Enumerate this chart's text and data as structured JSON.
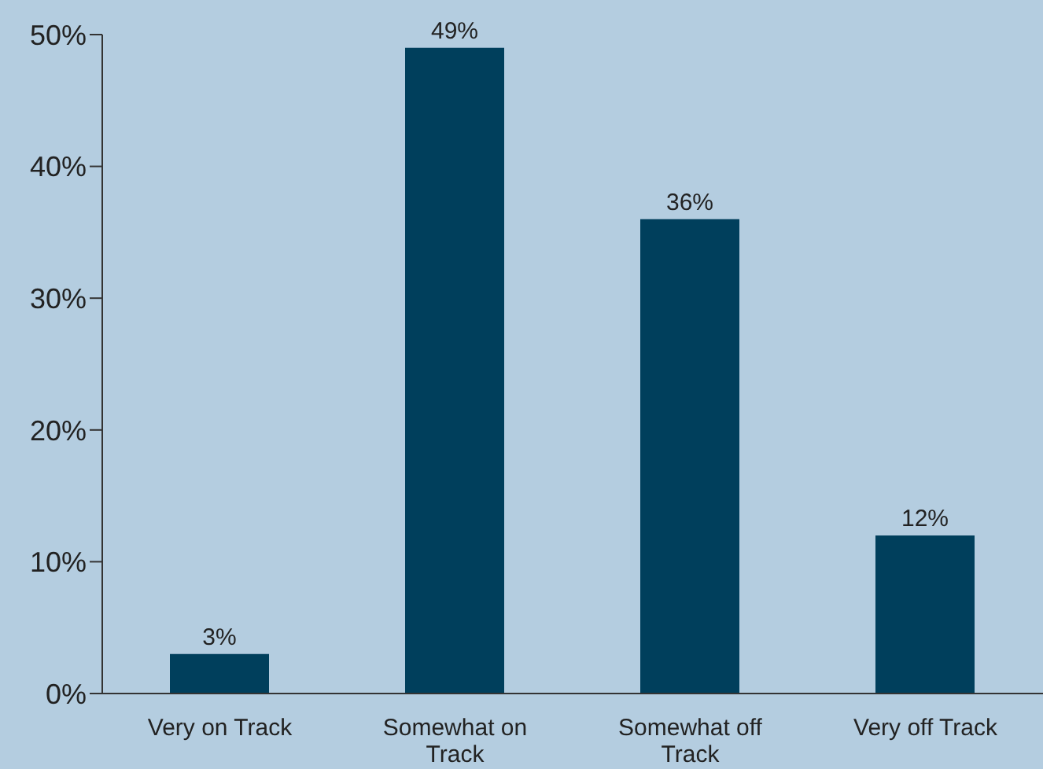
{
  "chart_data": {
    "type": "bar",
    "categories": [
      "Very on Track",
      "Somewhat on Track",
      "Somewhat off Track",
      "Very off Track"
    ],
    "values": [
      3,
      49,
      36,
      12
    ],
    "color": "#003f5c",
    "value_labels": [
      "3%",
      "49%",
      "36%",
      "12%"
    ],
    "ylim": [
      0,
      50
    ],
    "yticks": [
      {
        "value": 0,
        "label": "0%"
      },
      {
        "value": 10,
        "label": "10%"
      },
      {
        "value": 20,
        "label": "20%"
      },
      {
        "value": 30,
        "label": "30%"
      },
      {
        "value": 40,
        "label": "40%"
      },
      {
        "value": 50,
        "label": "50%"
      }
    ],
    "grid": false,
    "legend": false
  }
}
